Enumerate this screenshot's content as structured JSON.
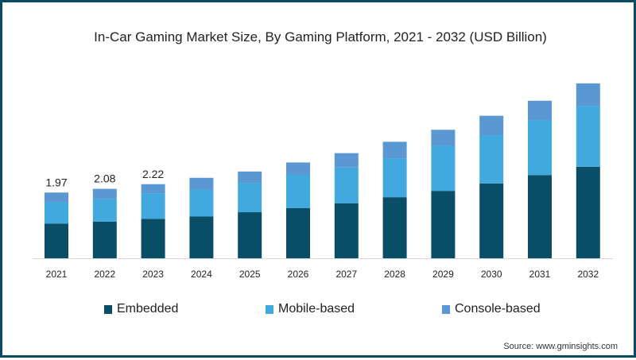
{
  "chart_data": {
    "type": "bar",
    "stacked": true,
    "title": "In-Car Gaming Market Size, By Gaming Platform, 2021 - 2032 (USD Billion)",
    "xlabel": "",
    "ylabel": "",
    "ylim": [
      0,
      5.5
    ],
    "grid": false,
    "legend_position": "bottom",
    "categories": [
      "2021",
      "2022",
      "2023",
      "2024",
      "2025",
      "2026",
      "2027",
      "2028",
      "2029",
      "2030",
      "2031",
      "2032"
    ],
    "series": [
      {
        "name": "Embedded",
        "color": "#0a4d66",
        "values": [
          1.04,
          1.1,
          1.18,
          1.25,
          1.38,
          1.5,
          1.65,
          1.83,
          2.02,
          2.24,
          2.49,
          2.74
        ]
      },
      {
        "name": "Mobile-based",
        "color": "#42a9de",
        "values": [
          0.64,
          0.67,
          0.77,
          0.81,
          0.88,
          1.0,
          1.07,
          1.16,
          1.35,
          1.45,
          1.64,
          1.83
        ]
      },
      {
        "name": "Console-based",
        "color": "#5b97d3",
        "values": [
          0.29,
          0.31,
          0.27,
          0.35,
          0.34,
          0.37,
          0.43,
          0.5,
          0.48,
          0.58,
          0.59,
          0.67
        ]
      }
    ],
    "data_labels": [
      {
        "category": "2021",
        "text": "1.97"
      },
      {
        "category": "2022",
        "text": "2.08"
      },
      {
        "category": "2023",
        "text": "2.22"
      }
    ]
  },
  "source": "Source: www.gminsights.com"
}
